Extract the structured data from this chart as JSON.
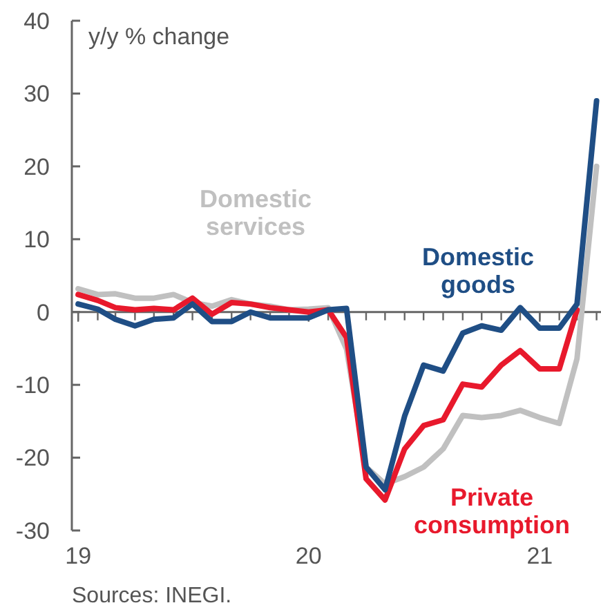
{
  "chart_data": {
    "type": "line",
    "ylabel": "y/y % change",
    "annotations": [
      "Sources: INEGI."
    ],
    "x": [
      "2019-01",
      "2019-02",
      "2019-03",
      "2019-04",
      "2019-05",
      "2019-06",
      "2019-07",
      "2019-08",
      "2019-09",
      "2019-10",
      "2019-11",
      "2019-12",
      "2020-01",
      "2020-02",
      "2020-03",
      "2020-04",
      "2020-05",
      "2020-06",
      "2020-07",
      "2020-08",
      "2020-09",
      "2020-10",
      "2020-11",
      "2020-12",
      "2021-01",
      "2021-02",
      "2021-03",
      "2021-04"
    ],
    "xlim": [
      "2018-12-22",
      "2021-04-08"
    ],
    "xticks": [
      {
        "value": "2019-01",
        "label": "19"
      },
      {
        "value": "2020-01",
        "label": "20"
      },
      {
        "value": "2021-01",
        "label": "21"
      }
    ],
    "ylim": [
      -30,
      40
    ],
    "yticks": [
      -30,
      -20,
      -10,
      0,
      10,
      20,
      30,
      40
    ],
    "ref_lines": [
      {
        "axis": "y",
        "value": 0
      }
    ],
    "legend": false,
    "grid": false,
    "line_style": "solid",
    "marker": "none",
    "series": [
      {
        "name": "Domestic services",
        "color": "#c0c0c0",
        "values": [
          3.2,
          2.4,
          2.5,
          1.9,
          1.9,
          2.4,
          1.3,
          0.8,
          1.7,
          1.1,
          0.8,
          0.3,
          0.4,
          0.6,
          -5.1,
          -21.3,
          -23.6,
          -22.6,
          -21.3,
          -18.8,
          -14.2,
          -14.5,
          -14.2,
          -13.5,
          -14.5,
          -15.3,
          -6.4,
          20
        ]
      },
      {
        "name": "Private consumption",
        "color": "#e8192c",
        "values": [
          2.4,
          1.6,
          0.6,
          0.3,
          0.5,
          0.3,
          1.9,
          -0.3,
          1.3,
          1.1,
          0.6,
          0.3,
          0,
          0.3,
          -3.5,
          -22.9,
          -25.8,
          -18.8,
          -15.6,
          -14.8,
          -9.9,
          -10.3,
          -7.3,
          -5.3,
          -7.8,
          -7.8,
          0.3,
          null
        ]
      },
      {
        "name": "Domestic goods",
        "color": "#1f4e85",
        "values": [
          1.1,
          0.4,
          -1.0,
          -1.9,
          -1.0,
          -0.8,
          1.1,
          -1.3,
          -1.3,
          0,
          -0.8,
          -0.8,
          -0.8,
          0.3,
          0.5,
          -21.3,
          -24.4,
          -14.3,
          -7.3,
          -8.1,
          -2.9,
          -1.9,
          -2.5,
          0.6,
          -2.2,
          -2.2,
          1.1,
          29
        ]
      }
    ]
  }
}
